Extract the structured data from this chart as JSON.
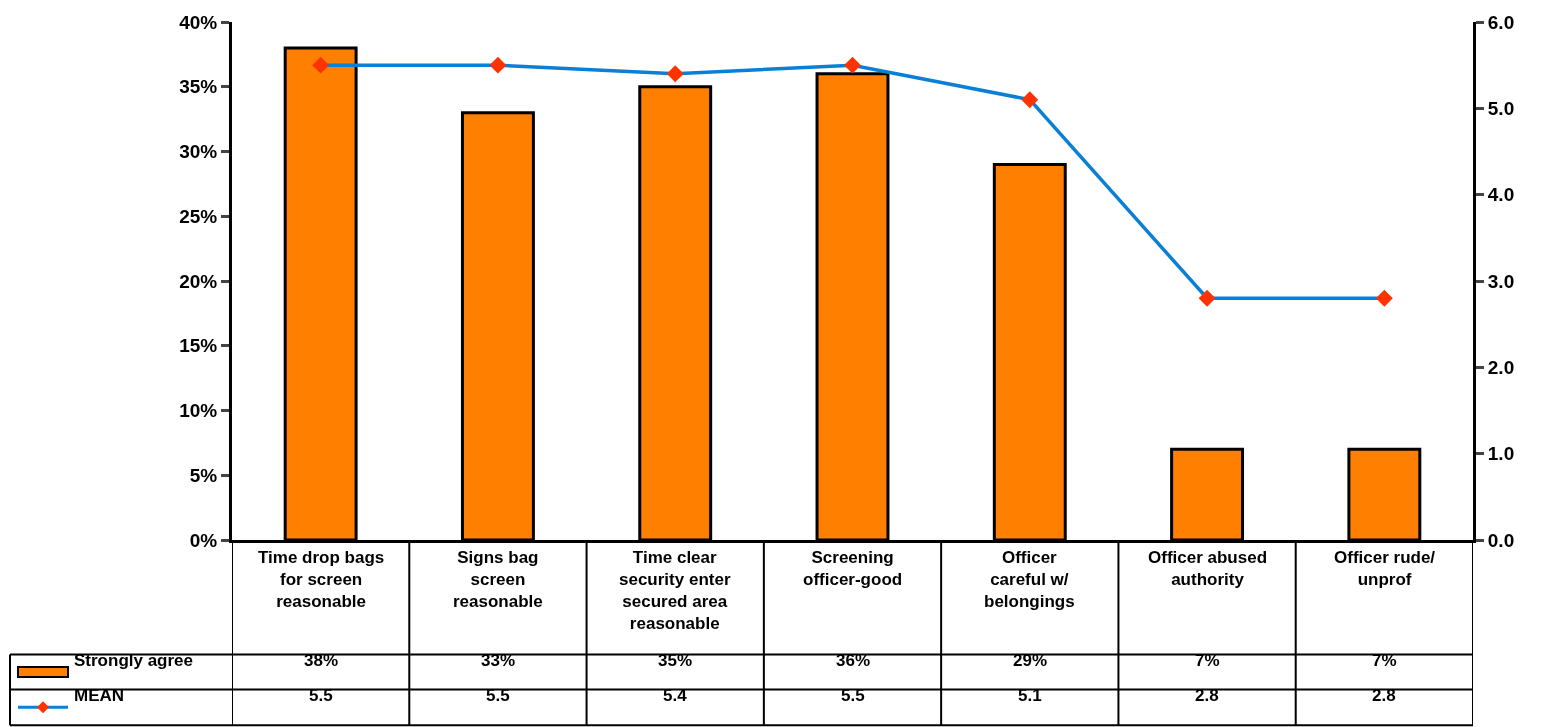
{
  "chart_data": {
    "type": "bar",
    "categories": [
      "Time drop bags for screen reasonable",
      "Signs bag screen reasonable",
      "Time clear security enter secured area reasonable",
      "Screening officer-good",
      "Officer careful w/ belongings",
      "Officer abused authority",
      "Officer rude/ unprof"
    ],
    "series": [
      {
        "name": "Strongly agree",
        "color": "#ff8000",
        "values": [
          38,
          33,
          35,
          36,
          29,
          7,
          7
        ],
        "value_labels": [
          "38%",
          "33%",
          "35%",
          "36%",
          "29%",
          "7%",
          "7%"
        ]
      },
      {
        "name": "MEAN",
        "type": "line",
        "axis": "y2",
        "color": "#0a7fd6",
        "values": [
          5.5,
          5.5,
          5.4,
          5.5,
          5.1,
          2.8,
          2.8
        ],
        "value_labels": [
          "5.5",
          "5.5",
          "5.4",
          "5.5",
          "5.1",
          "2.8",
          "2.8"
        ]
      }
    ],
    "marker": "diamond",
    "line_style": "solid",
    "legend": "bottom",
    "ylim": [
      0,
      40
    ],
    "yticks": [
      {
        "value": 0,
        "label": "0%"
      },
      {
        "value": 5,
        "label": "5%"
      },
      {
        "value": 10,
        "label": "10%"
      },
      {
        "value": 15,
        "label": "15%"
      },
      {
        "value": 20,
        "label": "20%"
      },
      {
        "value": 25,
        "label": "25%"
      },
      {
        "value": 30,
        "label": "30%"
      },
      {
        "value": 35,
        "label": "35%"
      },
      {
        "value": 40,
        "label": "40%"
      }
    ],
    "y2lim": [
      0,
      6
    ],
    "y2ticks": [
      {
        "value": 0,
        "label": "0.0"
      },
      {
        "value": 1,
        "label": "1.0"
      },
      {
        "value": 2,
        "label": "2.0"
      },
      {
        "value": 3,
        "label": "3.0"
      },
      {
        "value": 4,
        "label": "4.0"
      },
      {
        "value": 5,
        "label": "5.0"
      },
      {
        "value": 6,
        "label": "6.0"
      }
    ]
  }
}
